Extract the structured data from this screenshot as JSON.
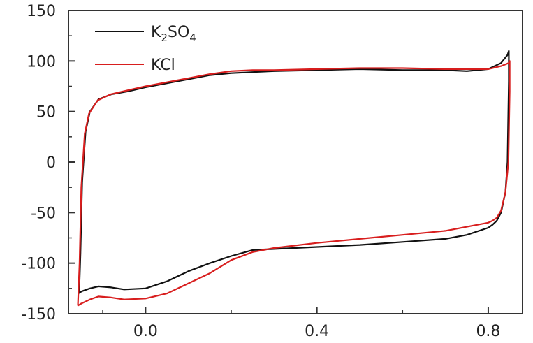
{
  "chart_data": {
    "type": "line",
    "title": "",
    "xlabel": "",
    "ylabel": "",
    "xlim": [
      -0.18,
      0.88
    ],
    "ylim": [
      -150,
      150
    ],
    "x_ticks": [
      0.0,
      0.4,
      0.8
    ],
    "x_tick_labels": [
      "0.0",
      "0.4",
      "0.8"
    ],
    "y_ticks": [
      -150,
      -100,
      -50,
      0,
      50,
      100,
      150
    ],
    "y_tick_labels": [
      "-150",
      "-100",
      "-50",
      "0",
      "50",
      "100",
      "150"
    ],
    "grid": false,
    "legend": {
      "placement": "top-left",
      "entries": [
        {
          "series": 0,
          "text": "K2SO4",
          "main": "K",
          "sub1": "2",
          "mid": "SO",
          "sub2": "4"
        },
        {
          "series": 1,
          "text": "KCl",
          "main": "KCl"
        }
      ]
    },
    "series": [
      {
        "name": "K2SO4",
        "color": "#111111",
        "x": [
          -0.155,
          -0.152,
          -0.148,
          -0.14,
          -0.13,
          -0.11,
          -0.08,
          -0.04,
          0.0,
          0.05,
          0.1,
          0.15,
          0.2,
          0.25,
          0.3,
          0.4,
          0.5,
          0.6,
          0.7,
          0.75,
          0.8,
          0.83,
          0.845,
          0.848,
          0.848,
          0.845,
          0.84,
          0.83,
          0.82,
          0.81,
          0.8,
          0.75,
          0.7,
          0.6,
          0.5,
          0.4,
          0.3,
          0.25,
          0.2,
          0.15,
          0.1,
          0.05,
          0.0,
          -0.05,
          -0.08,
          -0.11,
          -0.13,
          -0.15,
          -0.155
        ],
        "y": [
          -130,
          -90,
          -20,
          30,
          50,
          62,
          67,
          70,
          74,
          78,
          82,
          86,
          88,
          89,
          90,
          91,
          92,
          91,
          91,
          90,
          92,
          98,
          106,
          110,
          80,
          0,
          -30,
          -50,
          -58,
          -62,
          -65,
          -72,
          -76,
          -79,
          -82,
          -84,
          -86,
          -87,
          -93,
          -100,
          -108,
          -118,
          -125,
          -126,
          -124,
          -123,
          -125,
          -128,
          -130
        ]
      },
      {
        "name": "KCl",
        "color": "#d81e1e",
        "x": [
          -0.158,
          -0.154,
          -0.15,
          -0.142,
          -0.132,
          -0.112,
          -0.082,
          -0.042,
          0.0,
          0.05,
          0.1,
          0.15,
          0.2,
          0.25,
          0.3,
          0.4,
          0.5,
          0.6,
          0.7,
          0.75,
          0.8,
          0.83,
          0.848,
          0.85,
          0.85,
          0.847,
          0.84,
          0.83,
          0.82,
          0.81,
          0.8,
          0.75,
          0.7,
          0.6,
          0.5,
          0.4,
          0.3,
          0.25,
          0.2,
          0.15,
          0.1,
          0.05,
          0.0,
          -0.05,
          -0.08,
          -0.11,
          -0.13,
          -0.15,
          -0.158
        ],
        "y": [
          -142,
          -100,
          -25,
          28,
          48,
          61,
          67,
          71,
          75,
          79,
          83,
          87,
          90,
          91,
          91,
          92,
          93,
          93,
          92,
          92,
          92,
          95,
          98,
          100,
          70,
          0,
          -30,
          -48,
          -55,
          -58,
          -60,
          -64,
          -68,
          -72,
          -76,
          -80,
          -85,
          -89,
          -97,
          -110,
          -120,
          -130,
          -135,
          -136,
          -134,
          -133,
          -136,
          -140,
          -142
        ]
      }
    ]
  }
}
